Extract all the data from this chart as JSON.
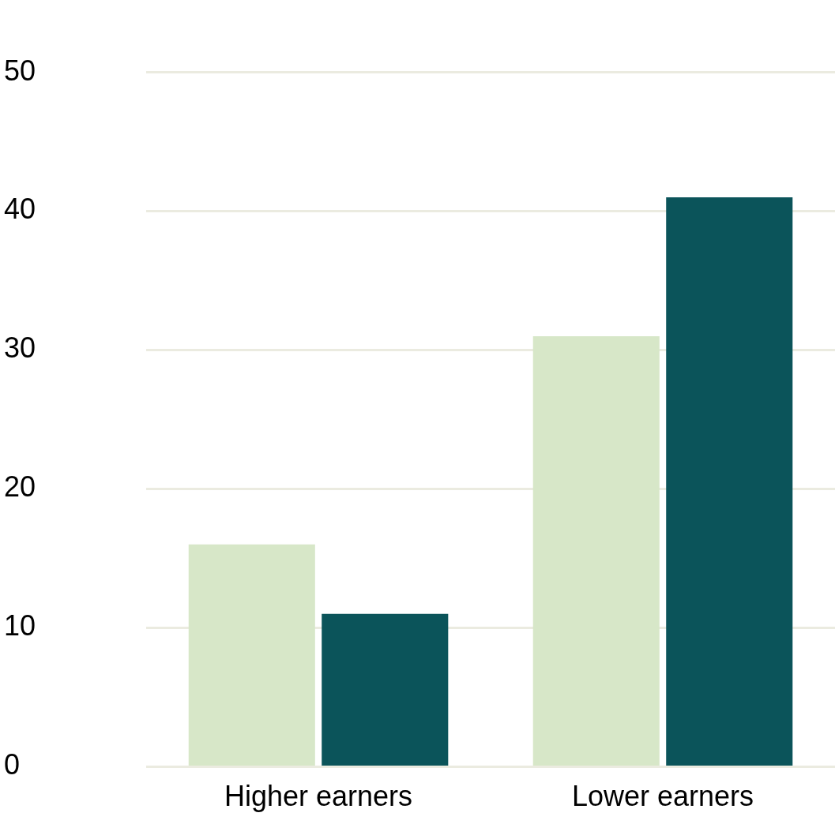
{
  "chart_data": {
    "type": "bar",
    "categories": [
      "Higher earners",
      "Lower earners"
    ],
    "series": [
      {
        "color": "#d7e7c8",
        "values": [
          16,
          31
        ]
      },
      {
        "color": "#0b545a",
        "values": [
          11,
          41
        ]
      }
    ],
    "ylim": [
      0,
      50
    ],
    "yticks": [
      0,
      10,
      20,
      30,
      40,
      50
    ],
    "grid": "y",
    "legend": false
  }
}
